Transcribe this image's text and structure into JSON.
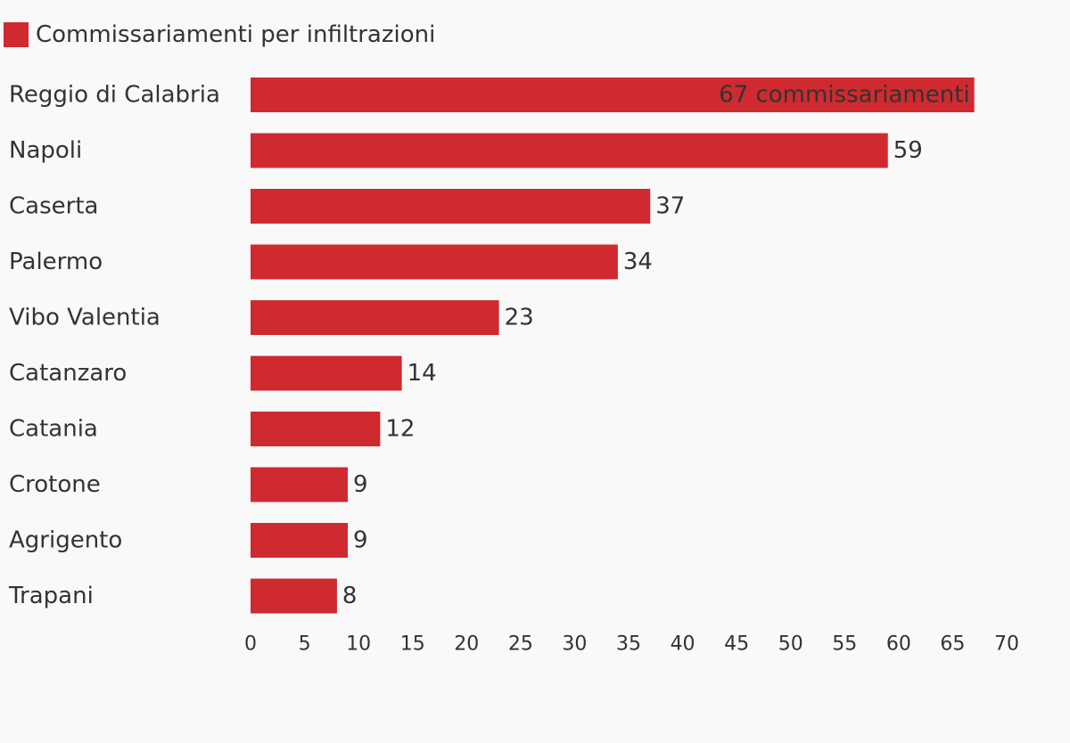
{
  "chart_data": {
    "type": "bar",
    "orientation": "horizontal",
    "title": "",
    "xlabel": "",
    "ylabel": "",
    "legend": {
      "placement": "top-left",
      "entries": [
        "Commissariamenti per infiltrazioni"
      ]
    },
    "series": [
      {
        "name": "Commissariamenti per infiltrazioni",
        "color": "#ce2a30",
        "values": [
          67,
          59,
          37,
          34,
          23,
          14,
          12,
          9,
          9,
          8
        ]
      }
    ],
    "categories": [
      "Reggio di Calabria",
      "Napoli",
      "Caserta",
      "Palermo",
      "Vibo Valentia",
      "Catanzaro",
      "Catania",
      "Crotone",
      "Agrigento",
      "Trapani"
    ],
    "data_labels": [
      "67 commissariamenti",
      "59",
      "37",
      "34",
      "23",
      "14",
      "12",
      "9",
      "9",
      "8"
    ],
    "xlim": [
      0,
      70
    ],
    "x_ticks": [
      0,
      5,
      10,
      15,
      20,
      25,
      30,
      35,
      40,
      45,
      50,
      55,
      60,
      65,
      70
    ],
    "grid": false,
    "colors": {
      "bar": "#ce2a30",
      "text": "#333333",
      "background": "#f9f9f9"
    }
  }
}
